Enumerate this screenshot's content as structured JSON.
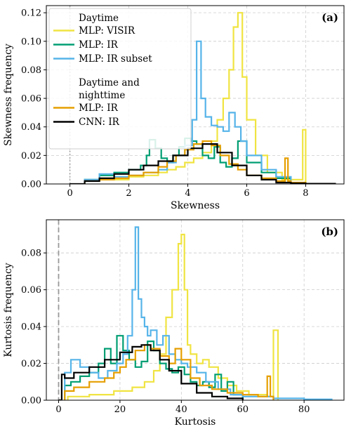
{
  "colors": {
    "yellow": "#f0e442",
    "green": "#009e73",
    "blue": "#56b4e9",
    "orange": "#e69f00",
    "black": "#000000",
    "refline": "#999999"
  },
  "chart_data": [
    {
      "type": "step-histogram",
      "panel_label": "(a)",
      "xlabel": "Skewness",
      "ylabel": "Skewness frequency",
      "xlim": [
        -0.8,
        9.3
      ],
      "ylim": [
        0,
        0.125
      ],
      "xticks": [
        "0",
        "2",
        "4",
        "6",
        "8"
      ],
      "xtick_values": [
        0,
        2,
        4,
        6,
        8
      ],
      "yticks": [
        "0.00",
        "0.02",
        "0.04",
        "0.06",
        "0.08",
        "0.10",
        "0.12"
      ],
      "ytick_values": [
        0,
        0.02,
        0.04,
        0.06,
        0.08,
        0.1,
        0.12
      ],
      "grid": true,
      "reference_line": {
        "x": 0,
        "style": "dotted"
      },
      "legend": {
        "placement": "top-left",
        "groups": [
          {
            "title": "Daytime",
            "entries": [
              "MLP: VISIR",
              "MLP: IR",
              "MLP: IR subset"
            ]
          },
          {
            "title": "Daytime and\nnighttime",
            "entries": [
              "MLP: IR",
              "CNN: IR"
            ]
          }
        ]
      },
      "series": [
        {
          "name": "MLP: VISIR",
          "color": "yellow",
          "x": [
            0.5,
            1,
            1.5,
            2,
            2.5,
            3,
            3.3,
            3.6,
            3.9,
            4.2,
            4.5,
            4.8,
            5,
            5.2,
            5.4,
            5.55,
            5.7,
            5.85,
            6,
            6.3,
            6.7,
            7.2,
            7.9,
            7.95,
            8
          ],
          "y": [
            0.002,
            0.004,
            0.003,
            0.005,
            0.006,
            0.008,
            0.01,
            0.012,
            0.015,
            0.018,
            0.022,
            0.03,
            0.045,
            0.06,
            0.08,
            0.11,
            0.12,
            0.075,
            0.045,
            0.02,
            0.008,
            0.003,
            0.038,
            0.038,
            0
          ]
        },
        {
          "name": "MLP: IR (daytime)",
          "color": "green",
          "x": [
            0.5,
            1,
            1.5,
            2,
            2.4,
            2.6,
            2.7,
            2.9,
            3.1,
            3.3,
            3.5,
            3.7,
            3.9,
            4.1,
            4.3,
            4.5,
            4.7,
            4.9,
            5.1,
            5.3,
            5.5,
            5.7,
            6,
            6.5,
            7,
            7.5
          ],
          "y": [
            0.003,
            0.006,
            0.008,
            0.01,
            0.013,
            0.02,
            0.031,
            0.025,
            0.018,
            0.015,
            0.02,
            0.026,
            0.032,
            0.03,
            0.028,
            0.02,
            0.018,
            0.026,
            0.015,
            0.012,
            0.018,
            0.03,
            0.015,
            0.008,
            0.004,
            0
          ]
        },
        {
          "name": "MLP: IR subset",
          "color": "blue",
          "x": [
            0.5,
            1,
            1.5,
            2,
            2.5,
            3,
            3.3,
            3.6,
            3.9,
            4.15,
            4.3,
            4.45,
            4.6,
            4.8,
            5,
            5.2,
            5.4,
            5.6,
            5.8,
            6,
            6.5,
            7,
            7.5
          ],
          "y": [
            0.003,
            0.007,
            0.005,
            0.006,
            0.008,
            0.01,
            0.015,
            0.02,
            0.027,
            0.045,
            0.1,
            0.06,
            0.047,
            0.041,
            0.04,
            0.037,
            0.05,
            0.04,
            0.03,
            0.02,
            0.01,
            0.005,
            0
          ]
        },
        {
          "name": "MLP: IR (daytime and nighttime)",
          "color": "orange",
          "x": [
            0.5,
            1,
            1.5,
            2,
            2.5,
            3,
            3.3,
            3.6,
            3.9,
            4.2,
            4.5,
            4.8,
            5.1,
            5.4,
            5.7,
            6,
            6.5,
            7,
            7.3,
            7.4,
            7.5,
            8
          ],
          "y": [
            0.002,
            0.003,
            0.004,
            0.006,
            0.008,
            0.012,
            0.016,
            0.02,
            0.024,
            0.028,
            0.03,
            0.027,
            0.02,
            0.014,
            0.01,
            0.006,
            0.004,
            0.002,
            0.018,
            0.002,
            0.001,
            0
          ]
        },
        {
          "name": "CNN: IR",
          "color": "black",
          "x": [
            0,
            0.5,
            1,
            1.5,
            2,
            2.5,
            3,
            3.5,
            4,
            4.5,
            5,
            5.5,
            6,
            6.5,
            7,
            7.5,
            8,
            9
          ],
          "y": [
            0,
            0.002,
            0.004,
            0.007,
            0.01,
            0.013,
            0.016,
            0.02,
            0.025,
            0.028,
            0.022,
            0.013,
            0.006,
            0.003,
            0.001,
            0.0005,
            0.0002,
            0
          ]
        }
      ]
    },
    {
      "type": "step-histogram",
      "panel_label": "(b)",
      "xlabel": "Kurtosis",
      "ylabel": "Kurtosis frequency",
      "xlim": [
        -4,
        93
      ],
      "ylim": [
        0,
        0.098
      ],
      "xticks": [
        "0",
        "20",
        "40",
        "60",
        "80"
      ],
      "xtick_values": [
        0,
        20,
        40,
        60,
        80
      ],
      "yticks": [
        "0.00",
        "0.02",
        "0.04",
        "0.06",
        "0.08"
      ],
      "ytick_values": [
        0,
        0.02,
        0.04,
        0.06,
        0.08
      ],
      "grid": true,
      "reference_line": {
        "x": 0,
        "style": "dashed"
      },
      "series": [
        {
          "name": "MLP: VISIR",
          "color": "yellow",
          "x": [
            3,
            10,
            18,
            24,
            28,
            31,
            33,
            35,
            37,
            39,
            40,
            41,
            42,
            43,
            45,
            47,
            49,
            52,
            55,
            58,
            62,
            68,
            70,
            71,
            71.5
          ],
          "y": [
            0.002,
            0.003,
            0.005,
            0.007,
            0.01,
            0.016,
            0.025,
            0.045,
            0.06,
            0.085,
            0.09,
            0.06,
            0.03,
            0.025,
            0.02,
            0.022,
            0.018,
            0.012,
            0.008,
            0.005,
            0.003,
            0.002,
            0.038,
            0.038,
            0
          ]
        },
        {
          "name": "MLP: IR (daytime)",
          "color": "green",
          "x": [
            2,
            4,
            7,
            10,
            13,
            15,
            17,
            19,
            21,
            23,
            25,
            27,
            29,
            31,
            33,
            35,
            37,
            39,
            41,
            43,
            45,
            47,
            49,
            51,
            53,
            55,
            57,
            60
          ],
          "y": [
            0.008,
            0.01,
            0.013,
            0.015,
            0.02,
            0.028,
            0.02,
            0.035,
            0.027,
            0.022,
            0.018,
            0.021,
            0.032,
            0.027,
            0.02,
            0.017,
            0.015,
            0.018,
            0.014,
            0.01,
            0.008,
            0.01,
            0.007,
            0.014,
            0.005,
            0.01,
            0.003,
            0
          ]
        },
        {
          "name": "MLP: IR subset",
          "color": "blue",
          "x": [
            2,
            4,
            7,
            10,
            13,
            16,
            19,
            21,
            22.5,
            24,
            25,
            26,
            27,
            28,
            29,
            30,
            32,
            34,
            36,
            38,
            40,
            42,
            45,
            48,
            52,
            56,
            60,
            70,
            80,
            89
          ],
          "y": [
            0.015,
            0.022,
            0.018,
            0.015,
            0.012,
            0.016,
            0.02,
            0.025,
            0.035,
            0.06,
            0.094,
            0.055,
            0.045,
            0.04,
            0.035,
            0.038,
            0.03,
            0.035,
            0.025,
            0.022,
            0.02,
            0.018,
            0.015,
            0.01,
            0.006,
            0.003,
            0.002,
            0.001,
            0.0005,
            0
          ]
        },
        {
          "name": "MLP: IR (daytime and nighttime)",
          "color": "orange",
          "x": [
            2,
            5,
            10,
            15,
            18,
            20,
            22,
            25,
            28,
            30,
            33,
            36,
            38,
            40,
            43,
            46,
            50,
            55,
            60,
            65,
            68,
            69,
            70
          ],
          "y": [
            0.005,
            0.007,
            0.01,
            0.012,
            0.015,
            0.018,
            0.022,
            0.027,
            0.03,
            0.028,
            0.024,
            0.02,
            0.028,
            0.022,
            0.012,
            0.008,
            0.006,
            0.004,
            0.003,
            0.002,
            0.013,
            0.002,
            0
          ]
        },
        {
          "name": "CNN: IR",
          "color": "black",
          "x": [
            0,
            1,
            2,
            5,
            10,
            15,
            20,
            24,
            27,
            30,
            33,
            36,
            40,
            45,
            50,
            55,
            60
          ],
          "y": [
            0,
            0.014,
            0.012,
            0.015,
            0.018,
            0.022,
            0.026,
            0.029,
            0.03,
            0.027,
            0.022,
            0.016,
            0.009,
            0.004,
            0.002,
            0.001,
            0
          ]
        }
      ]
    }
  ]
}
